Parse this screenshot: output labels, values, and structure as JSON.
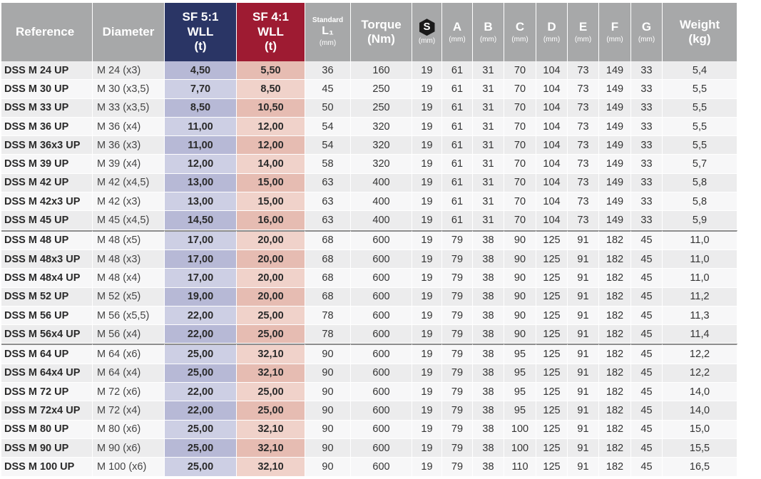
{
  "headers": {
    "reference": "Reference",
    "diameter": "Diameter",
    "sf5_line1": "SF 5:1",
    "sf5_line2": "WLL",
    "sf5_unit": "(t)",
    "sf4_line1": "SF 4:1",
    "sf4_line2": "WLL",
    "sf4_unit": "(t)",
    "standard": "Standard",
    "l1": "L₁",
    "mm": "(mm)",
    "torque_line1": "Torque",
    "torque_line2": "(Nm)",
    "s": "S",
    "a": "A",
    "b": "B",
    "c": "C",
    "d": "D",
    "e": "E",
    "f": "F",
    "g": "G",
    "weight_line1": "Weight",
    "weight_line2": "(kg)"
  },
  "colors": {
    "header_grey": "#a7a8a9",
    "sf5_navy": "#2a3565",
    "sf4_red": "#9e1b32"
  },
  "rows": [
    {
      "ref": "DSS M 24 UP",
      "dia": "M 24 (x3)",
      "sf5": "4,50",
      "sf4": "5,50",
      "l1": "36",
      "torque": "160",
      "s": "19",
      "a": "61",
      "b": "31",
      "c": "70",
      "d": "104",
      "e": "73",
      "f": "149",
      "g": "33",
      "weight": "5,4"
    },
    {
      "ref": "DSS M 30 UP",
      "dia": "M 30 (x3,5)",
      "sf5": "7,70",
      "sf4": "8,50",
      "l1": "45",
      "torque": "250",
      "s": "19",
      "a": "61",
      "b": "31",
      "c": "70",
      "d": "104",
      "e": "73",
      "f": "149",
      "g": "33",
      "weight": "5,5"
    },
    {
      "ref": "DSS M 33 UP",
      "dia": "M 33 (x3,5)",
      "sf5": "8,50",
      "sf4": "10,50",
      "l1": "50",
      "torque": "250",
      "s": "19",
      "a": "61",
      "b": "31",
      "c": "70",
      "d": "104",
      "e": "73",
      "f": "149",
      "g": "33",
      "weight": "5,5"
    },
    {
      "ref": "DSS M 36 UP",
      "dia": "M 36 (x4)",
      "sf5": "11,00",
      "sf4": "12,00",
      "l1": "54",
      "torque": "320",
      "s": "19",
      "a": "61",
      "b": "31",
      "c": "70",
      "d": "104",
      "e": "73",
      "f": "149",
      "g": "33",
      "weight": "5,5"
    },
    {
      "ref": "DSS M 36x3 UP",
      "dia": "M 36 (x3)",
      "sf5": "11,00",
      "sf4": "12,00",
      "l1": "54",
      "torque": "320",
      "s": "19",
      "a": "61",
      "b": "31",
      "c": "70",
      "d": "104",
      "e": "73",
      "f": "149",
      "g": "33",
      "weight": "5,5"
    },
    {
      "ref": "DSS M 39 UP",
      "dia": "M 39 (x4)",
      "sf5": "12,00",
      "sf4": "14,00",
      "l1": "58",
      "torque": "320",
      "s": "19",
      "a": "61",
      "b": "31",
      "c": "70",
      "d": "104",
      "e": "73",
      "f": "149",
      "g": "33",
      "weight": "5,7"
    },
    {
      "ref": "DSS M 42 UP",
      "dia": "M 42 (x4,5)",
      "sf5": "13,00",
      "sf4": "15,00",
      "l1": "63",
      "torque": "400",
      "s": "19",
      "a": "61",
      "b": "31",
      "c": "70",
      "d": "104",
      "e": "73",
      "f": "149",
      "g": "33",
      "weight": "5,8"
    },
    {
      "ref": "DSS M 42x3 UP",
      "dia": "M 42 (x3)",
      "sf5": "13,00",
      "sf4": "15,00",
      "l1": "63",
      "torque": "400",
      "s": "19",
      "a": "61",
      "b": "31",
      "c": "70",
      "d": "104",
      "e": "73",
      "f": "149",
      "g": "33",
      "weight": "5,8"
    },
    {
      "ref": "DSS M 45 UP",
      "dia": "M 45 (x4,5)",
      "sf5": "14,50",
      "sf4": "16,00",
      "l1": "63",
      "torque": "400",
      "s": "19",
      "a": "61",
      "b": "31",
      "c": "70",
      "d": "104",
      "e": "73",
      "f": "149",
      "g": "33",
      "weight": "5,9"
    },
    {
      "ref": "DSS M 48 UP",
      "dia": "M 48 (x5)",
      "sf5": "17,00",
      "sf4": "20,00",
      "l1": "68",
      "torque": "600",
      "s": "19",
      "a": "79",
      "b": "38",
      "c": "90",
      "d": "125",
      "e": "91",
      "f": "182",
      "g": "45",
      "weight": "11,0"
    },
    {
      "ref": "DSS M 48x3 UP",
      "dia": "M 48 (x3)",
      "sf5": "17,00",
      "sf4": "20,00",
      "l1": "68",
      "torque": "600",
      "s": "19",
      "a": "79",
      "b": "38",
      "c": "90",
      "d": "125",
      "e": "91",
      "f": "182",
      "g": "45",
      "weight": "11,0"
    },
    {
      "ref": "DSS M 48x4 UP",
      "dia": "M 48 (x4)",
      "sf5": "17,00",
      "sf4": "20,00",
      "l1": "68",
      "torque": "600",
      "s": "19",
      "a": "79",
      "b": "38",
      "c": "90",
      "d": "125",
      "e": "91",
      "f": "182",
      "g": "45",
      "weight": "11,0"
    },
    {
      "ref": "DSS M 52 UP",
      "dia": "M 52 (x5)",
      "sf5": "19,00",
      "sf4": "20,00",
      "l1": "68",
      "torque": "600",
      "s": "19",
      "a": "79",
      "b": "38",
      "c": "90",
      "d": "125",
      "e": "91",
      "f": "182",
      "g": "45",
      "weight": "11,2"
    },
    {
      "ref": "DSS M 56 UP",
      "dia": "M 56 (x5,5)",
      "sf5": "22,00",
      "sf4": "25,00",
      "l1": "78",
      "torque": "600",
      "s": "19",
      "a": "79",
      "b": "38",
      "c": "90",
      "d": "125",
      "e": "91",
      "f": "182",
      "g": "45",
      "weight": "11,3"
    },
    {
      "ref": "DSS M 56x4 UP",
      "dia": "M 56 (x4)",
      "sf5": "22,00",
      "sf4": "25,00",
      "l1": "78",
      "torque": "600",
      "s": "19",
      "a": "79",
      "b": "38",
      "c": "90",
      "d": "125",
      "e": "91",
      "f": "182",
      "g": "45",
      "weight": "11,4"
    },
    {
      "ref": "DSS M 64 UP",
      "dia": "M 64 (x6)",
      "sf5": "25,00",
      "sf4": "32,10",
      "l1": "90",
      "torque": "600",
      "s": "19",
      "a": "79",
      "b": "38",
      "c": "95",
      "d": "125",
      "e": "91",
      "f": "182",
      "g": "45",
      "weight": "12,2"
    },
    {
      "ref": "DSS M 64x4 UP",
      "dia": "M 64 (x4)",
      "sf5": "25,00",
      "sf4": "32,10",
      "l1": "90",
      "torque": "600",
      "s": "19",
      "a": "79",
      "b": "38",
      "c": "95",
      "d": "125",
      "e": "91",
      "f": "182",
      "g": "45",
      "weight": "12,2"
    },
    {
      "ref": "DSS M 72 UP",
      "dia": "M 72 (x6)",
      "sf5": "22,00",
      "sf4": "25,00",
      "l1": "90",
      "torque": "600",
      "s": "19",
      "a": "79",
      "b": "38",
      "c": "95",
      "d": "125",
      "e": "91",
      "f": "182",
      "g": "45",
      "weight": "14,0"
    },
    {
      "ref": "DSS M 72x4 UP",
      "dia": "M 72 (x4)",
      "sf5": "22,00",
      "sf4": "25,00",
      "l1": "90",
      "torque": "600",
      "s": "19",
      "a": "79",
      "b": "38",
      "c": "95",
      "d": "125",
      "e": "91",
      "f": "182",
      "g": "45",
      "weight": "14,0"
    },
    {
      "ref": "DSS M 80 UP",
      "dia": "M 80 (x6)",
      "sf5": "25,00",
      "sf4": "32,10",
      "l1": "90",
      "torque": "600",
      "s": "19",
      "a": "79",
      "b": "38",
      "c": "100",
      "d": "125",
      "e": "91",
      "f": "182",
      "g": "45",
      "weight": "15,0"
    },
    {
      "ref": "DSS M 90 UP",
      "dia": "M 90 (x6)",
      "sf5": "25,00",
      "sf4": "32,10",
      "l1": "90",
      "torque": "600",
      "s": "19",
      "a": "79",
      "b": "38",
      "c": "100",
      "d": "125",
      "e": "91",
      "f": "182",
      "g": "45",
      "weight": "15,5"
    },
    {
      "ref": "DSS M 100 UP",
      "dia": "M 100 (x6)",
      "sf5": "25,00",
      "sf4": "32,10",
      "l1": "90",
      "torque": "600",
      "s": "19",
      "a": "79",
      "b": "38",
      "c": "110",
      "d": "125",
      "e": "91",
      "f": "182",
      "g": "45",
      "weight": "16,5"
    }
  ]
}
